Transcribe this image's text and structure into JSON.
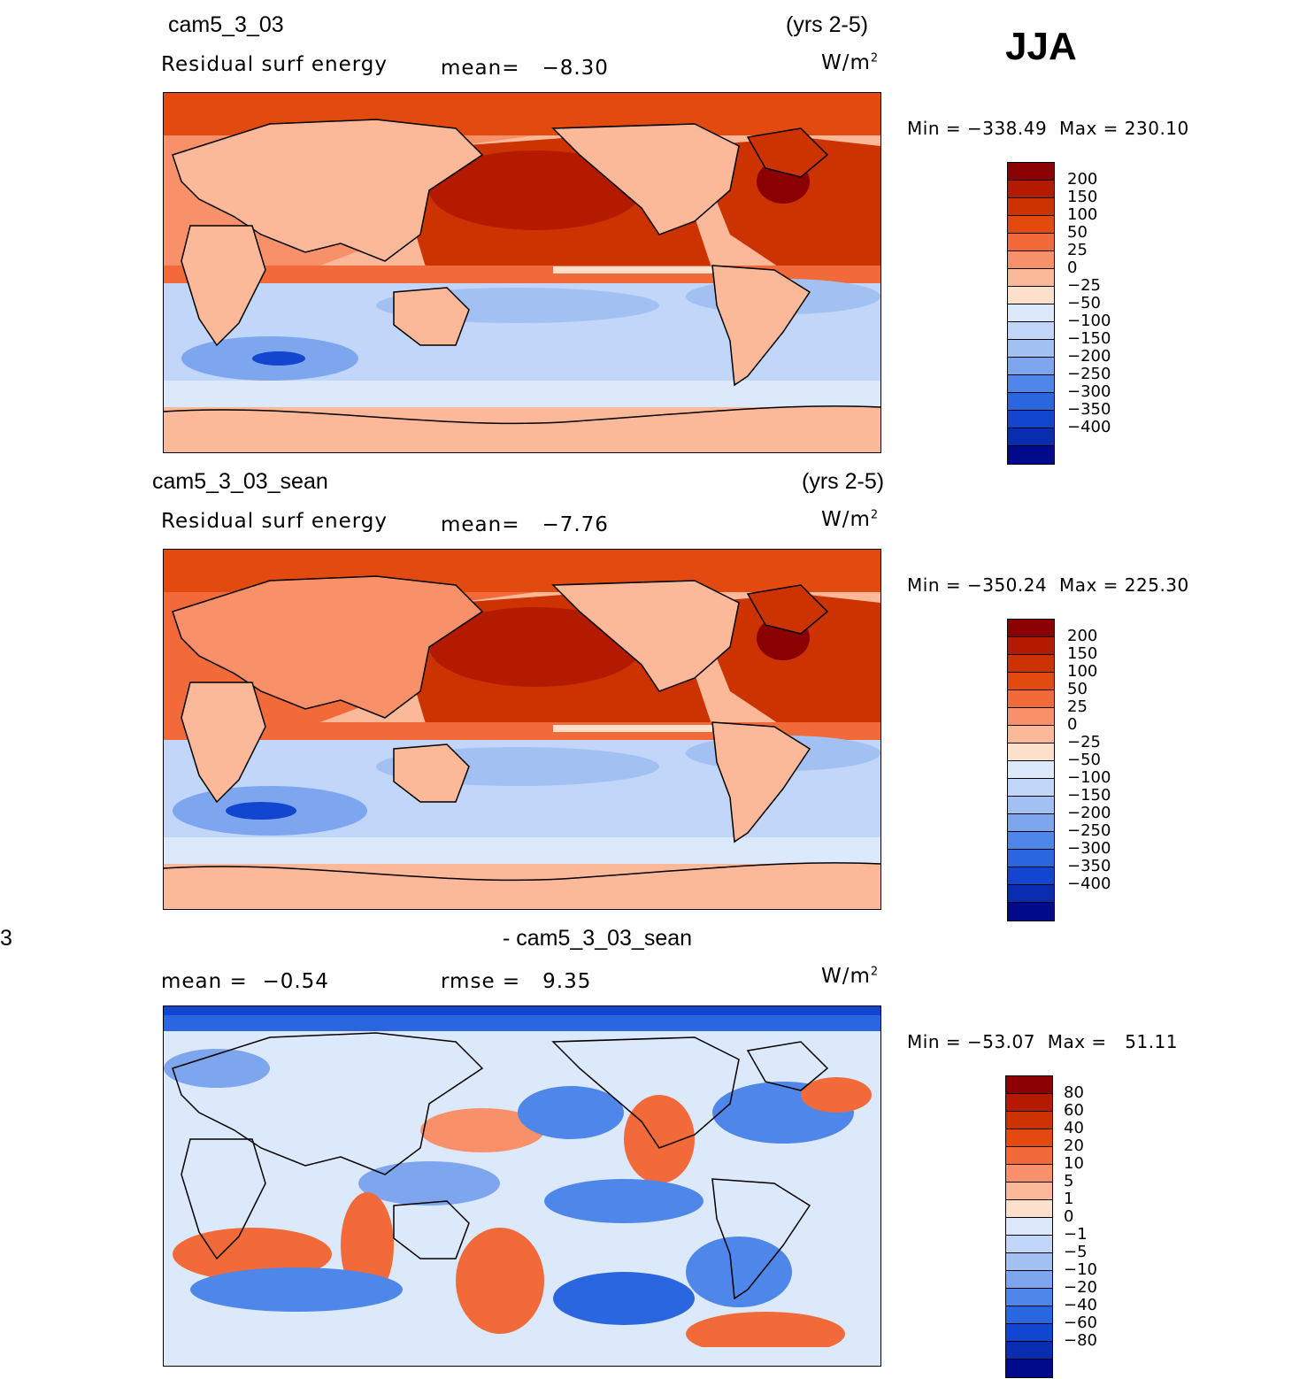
{
  "season": "JJA",
  "panels": [
    {
      "case_name": "cam5_3_03",
      "years": "(yrs 2-5)",
      "variable": "Residual surf energy",
      "stat1_label": "mean=",
      "stat1_value": "−8.30",
      "units_base": "W/m",
      "units_exp": "2",
      "min_label": "Min =",
      "min_value": "−338.49",
      "max_label": "Max =",
      "max_value": "230.10",
      "levels": [
        "200",
        "150",
        "100",
        "50",
        "25",
        "0",
        "−25",
        "−50",
        "−100",
        "−150",
        "−200",
        "−250",
        "−300",
        "−350",
        "−400"
      ],
      "colors": [
        "#8b0000",
        "#b31a00",
        "#cc3300",
        "#e34a10",
        "#f26a3a",
        "#f8906a",
        "#fbb99a",
        "#fde0cc",
        "#dce9fb",
        "#c1d6f8",
        "#a3c0f3",
        "#7ea6ee",
        "#4f86ea",
        "#2a66e0",
        "#1245d0",
        "#0a2cb0",
        "#000a8a"
      ]
    },
    {
      "case_name": "cam5_3_03_sean",
      "years": "(yrs 2-5)",
      "variable": "Residual surf energy",
      "stat1_label": "mean=",
      "stat1_value": "−7.76",
      "units_base": "W/m",
      "units_exp": "2",
      "min_label": "Min =",
      "min_value": "−350.24",
      "max_label": "Max =",
      "max_value": "225.30",
      "levels": [
        "200",
        "150",
        "100",
        "50",
        "25",
        "0",
        "−25",
        "−50",
        "−100",
        "−150",
        "−200",
        "−250",
        "−300",
        "−350",
        "−400"
      ],
      "colors": [
        "#8b0000",
        "#b31a00",
        "#cc3300",
        "#e34a10",
        "#f26a3a",
        "#f8906a",
        "#fbb99a",
        "#fde0cc",
        "#dce9fb",
        "#c1d6f8",
        "#a3c0f3",
        "#7ea6ee",
        "#4f86ea",
        "#2a66e0",
        "#1245d0",
        "#0a2cb0",
        "#000a8a"
      ]
    },
    {
      "left_fragment": "3",
      "title": "- cam5_3_03_sean",
      "stat1_label": "mean =",
      "stat1_value": "−0.54",
      "stat2_label": "rmse =",
      "stat2_value": "9.35",
      "units_base": "W/m",
      "units_exp": "2",
      "min_label": "Min =",
      "min_value": "−53.07",
      "max_label": "Max =",
      "max_value": "51.11",
      "levels": [
        "80",
        "60",
        "40",
        "20",
        "10",
        "5",
        "1",
        "0",
        "−1",
        "−5",
        "−10",
        "−20",
        "−40",
        "−60",
        "−80"
      ],
      "colors": [
        "#8b0000",
        "#b31a00",
        "#cc3300",
        "#e34a10",
        "#f26a3a",
        "#f8906a",
        "#fbb99a",
        "#fde0cc",
        "#dce9fb",
        "#c1d6f8",
        "#a3c0f3",
        "#7ea6ee",
        "#4f86ea",
        "#2a66e0",
        "#1245d0",
        "#0a2cb0",
        "#000a8a"
      ]
    }
  ]
}
